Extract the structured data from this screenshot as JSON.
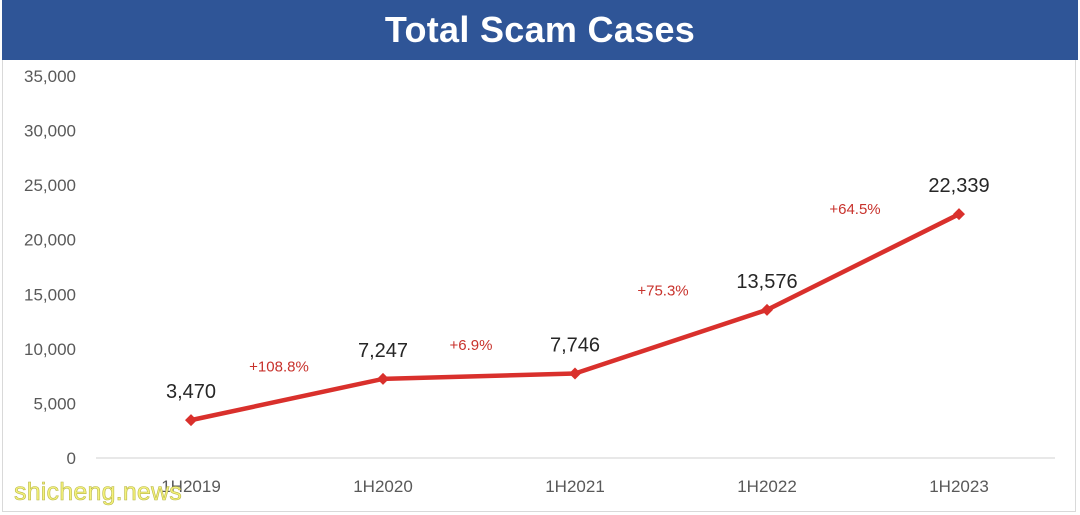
{
  "header": {
    "title": "Total Scam Cases"
  },
  "watermark": {
    "text": "shicheng.news"
  },
  "colors": {
    "title_bar": "#2f5597",
    "title_text": "#ffffff",
    "line": "#d9302c",
    "growth_label": "#c8322c",
    "value_label": "#262626",
    "axis_text": "#595959",
    "axis_line": "#d9d9d9"
  },
  "chart_data": {
    "type": "line",
    "title": "Total Scam Cases",
    "xlabel": "",
    "ylabel": "",
    "categories": [
      "1H2019",
      "1H2020",
      "1H2021",
      "1H2022",
      "1H2023"
    ],
    "series": [
      {
        "values": [
          3470,
          7247,
          7746,
          13576,
          22339
        ],
        "value_labels": [
          "3,470",
          "7,247",
          "7,746",
          "13,576",
          "22,339"
        ]
      }
    ],
    "growth_labels": [
      "+108.8%",
      "+6.9%",
      "+75.3%",
      "+64.5%"
    ],
    "ylim": [
      0,
      35000
    ],
    "yticks": [
      0,
      5000,
      10000,
      15000,
      20000,
      25000,
      30000,
      35000
    ],
    "ytick_labels": [
      "0",
      "5,000",
      "10,000",
      "15,000",
      "20,000",
      "25,000",
      "30,000",
      "35,000"
    ],
    "grid": false,
    "legend": "none",
    "marker": "diamond"
  }
}
